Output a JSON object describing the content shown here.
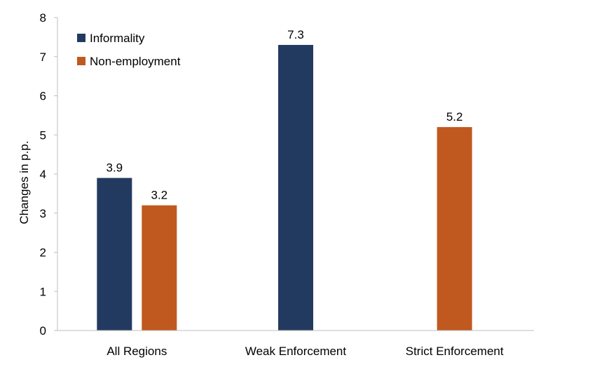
{
  "chart_data": {
    "type": "bar",
    "title": "",
    "xlabel": "",
    "ylabel": "Changes in p.p.",
    "ylim": [
      0,
      8
    ],
    "yticks": [
      0,
      1,
      2,
      3,
      4,
      5,
      6,
      7,
      8
    ],
    "grid": false,
    "legend_position": "top-left",
    "categories": [
      "All Regions",
      "Weak Enforcement",
      "Strict Enforcement"
    ],
    "series": [
      {
        "name": "Informality",
        "color": "#233A60",
        "values": [
          3.9,
          7.3,
          null
        ],
        "labels": [
          "3.9",
          "7.3",
          ""
        ]
      },
      {
        "name": "Non-employment",
        "color": "#C0591F",
        "values": [
          3.2,
          null,
          5.2
        ],
        "labels": [
          "3.2",
          "",
          "5.2"
        ]
      }
    ]
  }
}
